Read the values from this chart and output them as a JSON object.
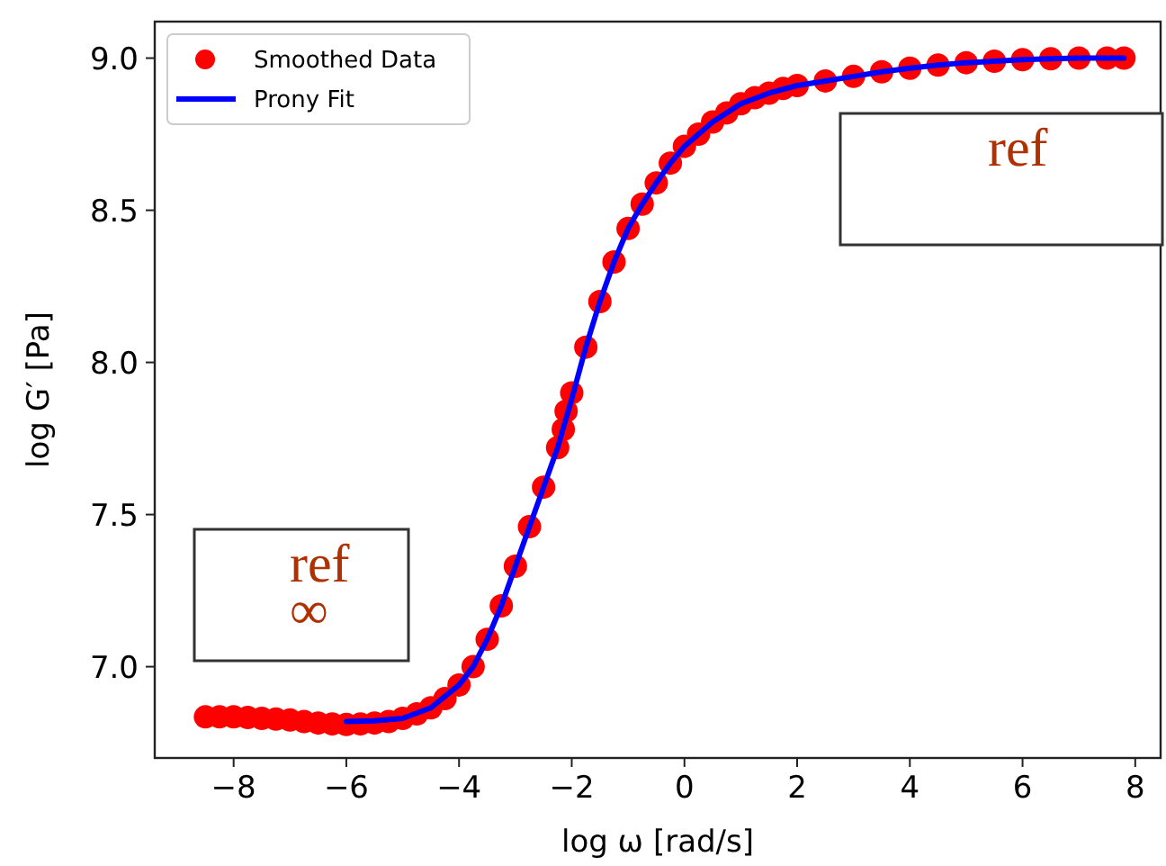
{
  "chart_data": {
    "type": "scatter",
    "xlabel": "log ω [rad/s]",
    "ylabel": "log G′ [Pa]",
    "xlim": [
      -9.4,
      8.45
    ],
    "ylim": [
      6.7,
      9.12
    ],
    "xticks": [
      {
        "value": -8,
        "label": "−8"
      },
      {
        "value": -6,
        "label": "−6"
      },
      {
        "value": -4,
        "label": "−4"
      },
      {
        "value": -2,
        "label": "−2"
      },
      0,
      2,
      4,
      6,
      8
    ],
    "yticks": [
      {
        "value": 7,
        "label": "7.0"
      },
      {
        "value": 7.5,
        "label": "7.5"
      },
      {
        "value": 8,
        "label": "8.0"
      },
      {
        "value": 8.5,
        "label": "8.5"
      },
      {
        "value": 9,
        "label": "9.0"
      }
    ],
    "legend": "top left",
    "grid": false,
    "annotations": [
      "ref",
      "ref\n∞"
    ],
    "series": [
      {
        "name": "Smoothed Data",
        "marker": "circle",
        "color": "#ff0000",
        "x": [
          -8.5,
          -8.25,
          -8,
          -7.75,
          -7.5,
          -7.25,
          -7,
          -6.75,
          -6.5,
          -6.25,
          -6,
          -5.75,
          -5.5,
          -5.25,
          -5,
          -4.75,
          -4.5,
          -4.25,
          -4,
          -3.75,
          -3.5,
          -3.25,
          -3,
          -2.75,
          -2.5,
          -2.25,
          -2.15,
          -2.1,
          -2,
          -1.75,
          -1.5,
          -1.25,
          -1,
          -0.75,
          -0.5,
          -0.25,
          0,
          0.25,
          0.5,
          0.75,
          1,
          1.25,
          1.5,
          1.75,
          2,
          2.5,
          3,
          3.5,
          4,
          4.5,
          5,
          5.5,
          6,
          6.5,
          7,
          7.5,
          7.8
        ],
        "values": [
          6.835,
          6.835,
          6.835,
          6.833,
          6.83,
          6.828,
          6.825,
          6.82,
          6.815,
          6.812,
          6.81,
          6.812,
          6.815,
          6.82,
          6.83,
          6.845,
          6.865,
          6.895,
          6.94,
          7.0,
          7.09,
          7.2,
          7.33,
          7.46,
          7.59,
          7.72,
          7.78,
          7.84,
          7.9,
          8.05,
          8.2,
          8.33,
          8.44,
          8.52,
          8.59,
          8.655,
          8.71,
          8.75,
          8.79,
          8.82,
          8.85,
          8.87,
          8.885,
          8.9,
          8.91,
          8.925,
          8.94,
          8.955,
          8.967,
          8.977,
          8.985,
          8.99,
          8.995,
          8.998,
          9.0,
          9.0,
          9.0
        ]
      },
      {
        "name": "Prony Fit",
        "type": "line",
        "marker": "none",
        "color": "#0000ff",
        "x": [
          -6,
          -5.5,
          -5,
          -4.5,
          -4,
          -3.75,
          -3.5,
          -3.25,
          -3,
          -2.75,
          -2.5,
          -2.25,
          -2,
          -1.75,
          -1.5,
          -1.25,
          -1,
          -0.75,
          -0.5,
          -0.25,
          0,
          0.5,
          1,
          1.5,
          2,
          2.5,
          3,
          3.5,
          4,
          4.5,
          5,
          5.5,
          6,
          6.5,
          7,
          7.5,
          7.8
        ],
        "values": [
          6.82,
          6.822,
          6.83,
          6.865,
          6.94,
          7.0,
          7.09,
          7.2,
          7.33,
          7.46,
          7.59,
          7.72,
          7.88,
          8.05,
          8.2,
          8.33,
          8.44,
          8.52,
          8.59,
          8.655,
          8.71,
          8.79,
          8.85,
          8.885,
          8.91,
          8.925,
          8.94,
          8.955,
          8.967,
          8.977,
          8.985,
          8.99,
          8.995,
          8.998,
          9.0,
          9.0,
          9.0
        ]
      }
    ]
  }
}
